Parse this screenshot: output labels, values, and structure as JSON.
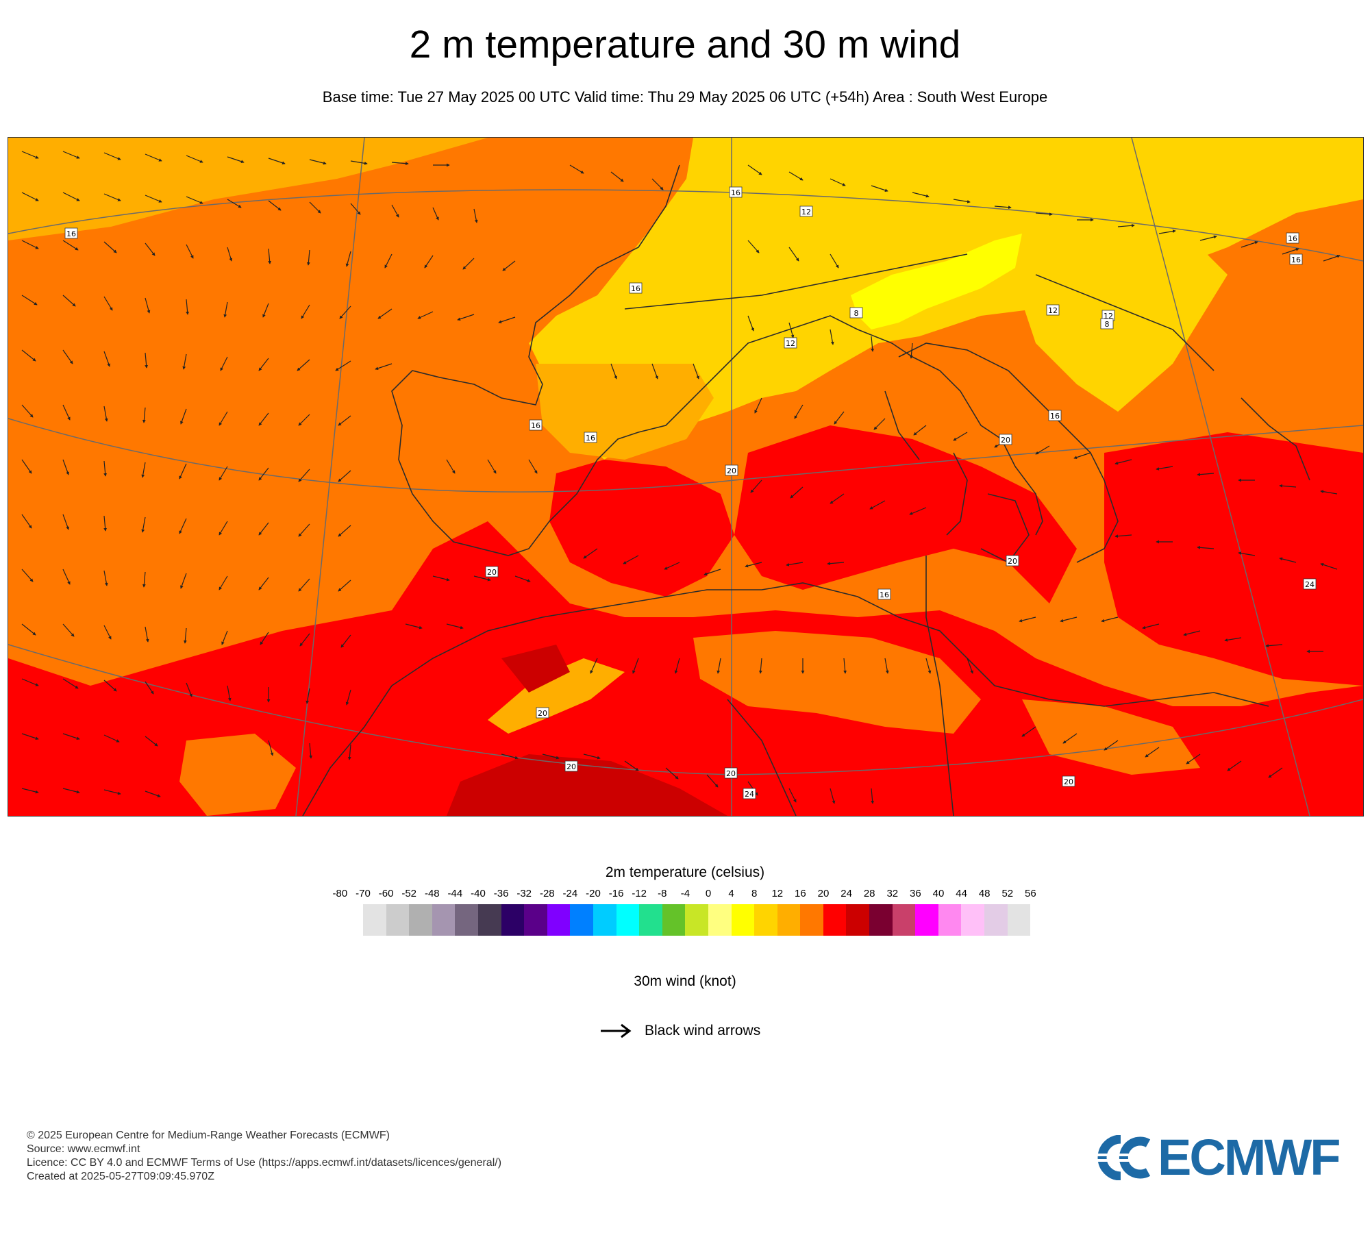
{
  "header": {
    "title": "2 m temperature and 30 m wind",
    "subtitle": "Base time: Tue 27 May 2025 00 UTC Valid time: Thu 29 May 2025 06 UTC (+54h) Area : South West Europe"
  },
  "map": {
    "region": "South West Europe",
    "isotherm_labels": [
      "16",
      "16",
      "16",
      "16",
      "16",
      "16",
      "16",
      "12",
      "12",
      "12",
      "12",
      "8",
      "8",
      "16",
      "20",
      "20",
      "20",
      "20",
      "20",
      "20",
      "24",
      "24",
      "20",
      "16",
      "20"
    ],
    "land_colors": {
      "t12_16": "#ffd400",
      "t8_12": "#ffff00",
      "t16_20": "#ff7800",
      "t20_24": "#ff0000",
      "t24_28": "#cc0000"
    }
  },
  "temperature_legend": {
    "title": "2m temperature (celsius)",
    "ticks": [
      "-80",
      "-70",
      "-60",
      "-52",
      "-48",
      "-44",
      "-40",
      "-36",
      "-32",
      "-28",
      "-24",
      "-20",
      "-16",
      "-12",
      "-8",
      "-4",
      "0",
      "4",
      "8",
      "12",
      "16",
      "20",
      "24",
      "28",
      "32",
      "36",
      "40",
      "44",
      "48",
      "52",
      "56"
    ],
    "colors": [
      "#e3e3e3",
      "#cccccc",
      "#b0b0b0",
      "#a595b0",
      "#75667f",
      "#463a52",
      "#2c0066",
      "#5a0089",
      "#8000ff",
      "#0080ff",
      "#00ccff",
      "#00ffff",
      "#22e08e",
      "#64c229",
      "#c8e626",
      "#ffff80",
      "#ffff00",
      "#ffd400",
      "#ffae00",
      "#ff7800",
      "#ff0000",
      "#cc0000",
      "#7a0030",
      "#c9406a",
      "#ff00ff",
      "#ff88f0",
      "#ffc0f8",
      "#e3cce6",
      "#e3e3e3"
    ]
  },
  "wind_legend": {
    "title": "30m wind (knot)",
    "label": "Black wind arrows",
    "icon": "arrow-right-icon"
  },
  "footer": {
    "copyright": "© 2025 European Centre for Medium-Range Weather Forecasts (ECMWF)",
    "source": "Source: www.ecmwf.int",
    "licence": "Licence: CC BY 4.0 and ECMWF Terms of Use (https://apps.ecmwf.int/datasets/licences/general/)",
    "created": "Created at 2025-05-27T09:09:45.970Z"
  },
  "logo": {
    "text": "ECMWF",
    "color": "#1d6aa6"
  }
}
